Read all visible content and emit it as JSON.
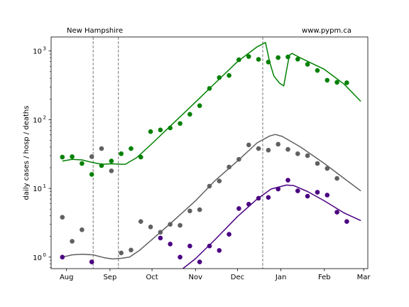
{
  "chart_data": {
    "type": "scatter",
    "region": "New Hampshire",
    "source": "www.pypm.ca",
    "ylabel": "daily cases / hosp / deaths",
    "xlabel": "",
    "yscale": "log",
    "ylim": [
      0.68,
      1600
    ],
    "xlim": [
      "2020-07-21",
      "2021-03-04"
    ],
    "x_ticks": [
      {
        "date": "2020-08-01",
        "label": "Aug"
      },
      {
        "date": "2020-09-01",
        "label": "Sep"
      },
      {
        "date": "2020-10-01",
        "label": "Oct"
      },
      {
        "date": "2020-11-01",
        "label": "Nov"
      },
      {
        "date": "2020-12-01",
        "label": "Dec"
      },
      {
        "date": "2021-01-01",
        "label": "Jan"
      },
      {
        "date": "2021-02-01",
        "label": "Feb"
      },
      {
        "date": "2021-03-01",
        "label": "Mar"
      }
    ],
    "y_ticks": [
      {
        "value": 1,
        "base": "10",
        "exp": "0"
      },
      {
        "value": 10,
        "base": "10",
        "exp": "1"
      },
      {
        "value": 100,
        "base": "10",
        "exp": "2"
      },
      {
        "value": 1000,
        "base": "10",
        "exp": "3"
      }
    ],
    "vlines": [
      "2020-08-20",
      "2020-09-07",
      "2020-12-19"
    ],
    "series": [
      {
        "color": "#008000",
        "points": [
          [
            "2020-07-29",
            28.5
          ],
          [
            "2020-08-05",
            29
          ],
          [
            "2020-08-12",
            23
          ],
          [
            "2020-08-19",
            16
          ],
          [
            "2020-08-26",
            21.5
          ],
          [
            "2020-09-02",
            25
          ],
          [
            "2020-09-09",
            32
          ],
          [
            "2020-09-16",
            38
          ],
          [
            "2020-09-23",
            28.5
          ],
          [
            "2020-09-30",
            67
          ],
          [
            "2020-10-07",
            71
          ],
          [
            "2020-10-14",
            76
          ],
          [
            "2020-10-21",
            88
          ],
          [
            "2020-10-28",
            120
          ],
          [
            "2020-11-04",
            160
          ],
          [
            "2020-11-11",
            285
          ],
          [
            "2020-11-18",
            410
          ],
          [
            "2020-11-25",
            440
          ],
          [
            "2020-12-02",
            745
          ],
          [
            "2020-12-09",
            830
          ],
          [
            "2020-12-16",
            755
          ],
          [
            "2020-12-23",
            690
          ],
          [
            "2020-12-30",
            800
          ],
          [
            "2021-01-06",
            820
          ],
          [
            "2021-01-13",
            760
          ],
          [
            "2021-01-20",
            640
          ],
          [
            "2021-01-27",
            520
          ],
          [
            "2021-02-03",
            375
          ],
          [
            "2021-02-10",
            350
          ],
          [
            "2021-02-17",
            345
          ]
        ],
        "curve": [
          [
            "2020-07-29",
            25
          ],
          [
            "2020-08-05",
            26.5
          ],
          [
            "2020-08-12",
            26
          ],
          [
            "2020-08-19",
            24
          ],
          [
            "2020-08-26",
            22.5
          ],
          [
            "2020-09-02",
            22.8
          ],
          [
            "2020-09-09",
            22.5
          ],
          [
            "2020-09-12",
            22.5
          ],
          [
            "2020-09-20",
            28
          ],
          [
            "2020-10-01",
            45
          ],
          [
            "2020-10-15",
            84
          ],
          [
            "2020-11-01",
            180
          ],
          [
            "2020-11-15",
            340
          ],
          [
            "2020-12-01",
            700
          ],
          [
            "2020-12-15",
            1150
          ],
          [
            "2020-12-21",
            1330
          ],
          [
            "2020-12-24",
            680
          ],
          [
            "2020-12-27",
            430
          ],
          [
            "2020-12-31",
            340
          ],
          [
            "2021-01-03",
            310
          ],
          [
            "2021-01-05",
            520
          ],
          [
            "2021-01-07",
            870
          ],
          [
            "2021-01-09",
            920
          ],
          [
            "2021-01-15",
            790
          ],
          [
            "2021-02-01",
            540
          ],
          [
            "2021-02-15",
            330
          ],
          [
            "2021-02-27",
            185
          ]
        ]
      },
      {
        "color": "#606060",
        "points": [
          [
            "2020-07-29",
            3.8
          ],
          [
            "2020-08-05",
            1.7
          ],
          [
            "2020-08-12",
            2.5
          ],
          [
            "2020-08-19",
            29
          ],
          [
            "2020-08-26",
            38
          ],
          [
            "2020-09-02",
            18
          ],
          [
            "2020-09-09",
            1.15
          ],
          [
            "2020-09-16",
            1.27
          ],
          [
            "2020-09-23",
            3.3
          ],
          [
            "2020-09-30",
            2.75
          ],
          [
            "2020-10-07",
            2.3
          ],
          [
            "2020-10-14",
            3.0
          ],
          [
            "2020-10-21",
            2.9
          ],
          [
            "2020-10-28",
            4.7
          ],
          [
            "2020-11-04",
            4.9
          ],
          [
            "2020-11-11",
            10.8
          ],
          [
            "2020-11-18",
            12.8
          ],
          [
            "2020-11-25",
            20.5
          ],
          [
            "2020-12-02",
            26.5
          ],
          [
            "2020-12-09",
            43
          ],
          [
            "2020-12-16",
            38
          ],
          [
            "2020-12-23",
            36
          ],
          [
            "2020-12-30",
            44
          ],
          [
            "2021-01-06",
            37
          ],
          [
            "2021-01-13",
            32
          ],
          [
            "2021-01-20",
            30
          ],
          [
            "2021-01-27",
            23
          ],
          [
            "2021-02-03",
            19.5
          ],
          [
            "2021-02-10",
            14
          ]
        ],
        "curve": [
          [
            "2020-07-29",
            1.0
          ],
          [
            "2020-08-05",
            1.08
          ],
          [
            "2020-08-12",
            1.1
          ],
          [
            "2020-08-20",
            1.08
          ],
          [
            "2020-08-28",
            0.98
          ],
          [
            "2020-09-03",
            0.94
          ],
          [
            "2020-09-09",
            0.96
          ],
          [
            "2020-09-15",
            1.0
          ],
          [
            "2020-09-22",
            1.25
          ],
          [
            "2020-10-01",
            1.8
          ],
          [
            "2020-10-15",
            3.2
          ],
          [
            "2020-11-01",
            6.6
          ],
          [
            "2020-11-15",
            13
          ],
          [
            "2020-12-01",
            25
          ],
          [
            "2020-12-15",
            46
          ],
          [
            "2020-12-24",
            58
          ],
          [
            "2020-12-28",
            61
          ],
          [
            "2021-01-02",
            57
          ],
          [
            "2021-01-15",
            40
          ],
          [
            "2021-02-01",
            23
          ],
          [
            "2021-02-15",
            14
          ],
          [
            "2021-02-27",
            9.2
          ]
        ]
      },
      {
        "color": "#4b0082",
        "points": [
          [
            "2020-07-29",
            1.0
          ],
          [
            "2020-08-19",
            0.85
          ],
          [
            "2020-10-07",
            1.9
          ],
          [
            "2020-10-14",
            1.55
          ],
          [
            "2020-10-21",
            1.0
          ],
          [
            "2020-10-28",
            1.45
          ],
          [
            "2020-11-04",
            0.85
          ],
          [
            "2020-11-11",
            1.45
          ],
          [
            "2020-11-18",
            1.25
          ],
          [
            "2020-11-25",
            2.15
          ],
          [
            "2020-12-02",
            5.1
          ],
          [
            "2020-12-09",
            5.9
          ],
          [
            "2020-12-16",
            7.2
          ],
          [
            "2020-12-23",
            7.4
          ],
          [
            "2020-12-30",
            9.8
          ],
          [
            "2021-01-06",
            13.2
          ],
          [
            "2021-01-13",
            9.2
          ],
          [
            "2021-01-20",
            7.7
          ],
          [
            "2021-01-27",
            8.8
          ],
          [
            "2021-02-03",
            8.0
          ],
          [
            "2021-02-10",
            4.5
          ],
          [
            "2021-02-17",
            3.3
          ]
        ],
        "curve": [
          [
            "2020-10-23",
            0.68
          ],
          [
            "2020-11-01",
            0.95
          ],
          [
            "2020-11-15",
            1.8
          ],
          [
            "2020-12-01",
            3.9
          ],
          [
            "2020-12-15",
            7.0
          ],
          [
            "2020-12-25",
            9.8
          ],
          [
            "2021-01-05",
            11.2
          ],
          [
            "2021-01-10",
            11.0
          ],
          [
            "2021-01-20",
            9.0
          ],
          [
            "2021-02-01",
            6.6
          ],
          [
            "2021-02-15",
            4.4
          ],
          [
            "2021-02-27",
            3.4
          ]
        ]
      }
    ]
  }
}
